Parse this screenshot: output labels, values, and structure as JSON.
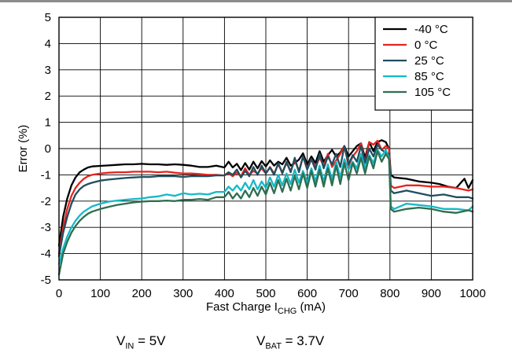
{
  "chart_data": {
    "type": "line",
    "xlabel": {
      "main": "Fast Charge I",
      "sub": "CHG",
      "suffix": " (mA)"
    },
    "ylabel": "Error (%)",
    "xlim": [
      0,
      1000
    ],
    "ylim": [
      -5,
      5
    ],
    "xticks": [
      "0",
      "100",
      "200",
      "300",
      "400",
      "500",
      "600",
      "700",
      "800",
      "900",
      "1000"
    ],
    "yticks": [
      "5",
      "4",
      "3",
      "2",
      "1",
      "0",
      "-1",
      "-2",
      "-3",
      "-4",
      "-5"
    ],
    "grid": true,
    "legend_position": "top-right",
    "series": [
      {
        "name": "-40 °C",
        "color": "#000000",
        "x": [
          0,
          10,
          20,
          30,
          40,
          50,
          60,
          70,
          80,
          100,
          120,
          140,
          160,
          180,
          200,
          220,
          240,
          260,
          280,
          300,
          320,
          340,
          360,
          380,
          400,
          410,
          420,
          430,
          440,
          450,
          460,
          470,
          480,
          490,
          500,
          510,
          520,
          530,
          540,
          550,
          560,
          570,
          580,
          590,
          600,
          610,
          620,
          630,
          640,
          650,
          660,
          670,
          680,
          690,
          700,
          710,
          720,
          730,
          740,
          750,
          760,
          770,
          780,
          790,
          798,
          802,
          810,
          840,
          870,
          900,
          920,
          940,
          960,
          980,
          990,
          1000
        ],
        "y": [
          -3.7,
          -2.6,
          -1.9,
          -1.4,
          -1.1,
          -0.9,
          -0.8,
          -0.72,
          -0.68,
          -0.66,
          -0.64,
          -0.62,
          -0.6,
          -0.6,
          -0.58,
          -0.6,
          -0.6,
          -0.62,
          -0.6,
          -0.62,
          -0.65,
          -0.7,
          -0.7,
          -0.65,
          -0.72,
          -0.5,
          -0.72,
          -0.58,
          -0.82,
          -0.55,
          -0.8,
          -0.5,
          -0.75,
          -0.48,
          -0.68,
          -0.45,
          -0.65,
          -0.5,
          -0.6,
          -0.35,
          -0.65,
          -0.55,
          -0.42,
          -0.18,
          -0.6,
          -0.3,
          -0.55,
          -0.1,
          -0.5,
          -0.25,
          -0.05,
          -0.3,
          -0.15,
          0.1,
          -0.3,
          -0.1,
          0.1,
          0.2,
          -0.35,
          0.25,
          -0.1,
          0.25,
          0.32,
          0.25,
          0.0,
          -1.0,
          -1.1,
          -1.15,
          -1.25,
          -1.3,
          -1.35,
          -1.45,
          -1.5,
          -1.15,
          -1.5,
          -1.2
        ]
      },
      {
        "name": "0 °C",
        "color": "#e8231f",
        "x": [
          0,
          10,
          20,
          30,
          40,
          50,
          60,
          70,
          80,
          100,
          120,
          140,
          160,
          180,
          200,
          220,
          240,
          260,
          280,
          300,
          320,
          340,
          360,
          380,
          400,
          410,
          420,
          430,
          440,
          450,
          460,
          470,
          480,
          490,
          500,
          510,
          520,
          530,
          540,
          550,
          560,
          570,
          580,
          590,
          600,
          610,
          620,
          630,
          640,
          650,
          660,
          670,
          680,
          690,
          700,
          710,
          720,
          730,
          740,
          750,
          760,
          770,
          780,
          790,
          798,
          802,
          810,
          840,
          870,
          900,
          930,
          960,
          990,
          1000
        ],
        "y": [
          -4.0,
          -3.0,
          -2.3,
          -1.8,
          -1.5,
          -1.3,
          -1.15,
          -1.05,
          -1.0,
          -0.95,
          -0.92,
          -0.9,
          -0.9,
          -0.88,
          -0.88,
          -0.88,
          -0.9,
          -0.88,
          -0.92,
          -0.95,
          -0.95,
          -0.97,
          -1.0,
          -1.0,
          -1.02,
          -0.95,
          -1.05,
          -0.92,
          -1.05,
          -0.75,
          -1.0,
          -0.85,
          -0.95,
          -0.75,
          -0.95,
          -0.7,
          -0.95,
          -0.6,
          -0.9,
          -0.55,
          -0.85,
          -0.45,
          -0.85,
          -0.3,
          -0.75,
          -0.4,
          -0.7,
          -0.35,
          -0.65,
          -0.2,
          -0.7,
          -0.45,
          -0.2,
          0.1,
          -0.65,
          -0.3,
          -0.1,
          0.2,
          -0.55,
          0.25,
          0.15,
          0.3,
          -0.05,
          0.1,
          0.0,
          -1.4,
          -1.5,
          -1.4,
          -1.4,
          -1.45,
          -1.45,
          -1.5,
          -1.6,
          -1.55
        ]
      },
      {
        "name": "25 °C",
        "color": "#1f4e5f",
        "x": [
          0,
          10,
          20,
          30,
          40,
          50,
          60,
          70,
          80,
          100,
          120,
          140,
          160,
          180,
          200,
          220,
          240,
          260,
          280,
          300,
          320,
          340,
          360,
          380,
          400,
          410,
          420,
          430,
          440,
          450,
          460,
          470,
          480,
          490,
          500,
          510,
          520,
          530,
          540,
          550,
          560,
          570,
          580,
          590,
          600,
          610,
          620,
          630,
          640,
          650,
          660,
          670,
          680,
          690,
          700,
          710,
          720,
          730,
          740,
          750,
          760,
          770,
          780,
          790,
          798,
          802,
          810,
          840,
          870,
          900,
          930,
          960,
          990,
          1000
        ],
        "y": [
          -4.1,
          -3.2,
          -2.6,
          -2.1,
          -1.75,
          -1.55,
          -1.42,
          -1.35,
          -1.3,
          -1.22,
          -1.18,
          -1.15,
          -1.12,
          -1.1,
          -1.08,
          -1.08,
          -1.05,
          -1.05,
          -1.05,
          -1.08,
          -1.05,
          -1.05,
          -1.05,
          -1.02,
          -1.02,
          -0.9,
          -1.0,
          -0.8,
          -1.1,
          -0.85,
          -1.05,
          -0.7,
          -1.0,
          -0.65,
          -0.95,
          -0.72,
          -1.0,
          -0.55,
          -0.95,
          -0.5,
          -0.9,
          -0.35,
          -0.9,
          -0.3,
          -0.8,
          -0.4,
          -0.8,
          -0.2,
          -0.75,
          -0.3,
          -0.6,
          -0.2,
          -0.7,
          0.1,
          -0.6,
          -0.25,
          -0.5,
          0.1,
          -0.55,
          0.0,
          -0.3,
          0.15,
          -0.05,
          -0.15,
          -0.2,
          -1.6,
          -1.7,
          -1.6,
          -1.7,
          -1.8,
          -1.75,
          -1.85,
          -1.85,
          -1.9
        ]
      },
      {
        "name": "85 °C",
        "color": "#14b9c8",
        "x": [
          0,
          10,
          20,
          30,
          40,
          50,
          60,
          70,
          80,
          100,
          120,
          140,
          160,
          180,
          200,
          220,
          240,
          260,
          280,
          300,
          320,
          340,
          360,
          380,
          400,
          410,
          420,
          430,
          440,
          450,
          460,
          470,
          480,
          490,
          500,
          510,
          520,
          530,
          540,
          550,
          560,
          570,
          580,
          590,
          600,
          610,
          620,
          630,
          640,
          650,
          660,
          670,
          680,
          690,
          700,
          710,
          720,
          730,
          740,
          750,
          760,
          770,
          780,
          790,
          798,
          802,
          810,
          840,
          870,
          900,
          930,
          960,
          990,
          1000
        ],
        "y": [
          -4.4,
          -3.8,
          -3.35,
          -3.0,
          -2.75,
          -2.55,
          -2.4,
          -2.3,
          -2.2,
          -2.1,
          -2.02,
          -1.98,
          -1.95,
          -1.92,
          -1.9,
          -1.85,
          -1.82,
          -1.75,
          -1.8,
          -1.7,
          -1.75,
          -1.72,
          -1.75,
          -1.65,
          -1.65,
          -1.45,
          -1.6,
          -1.4,
          -1.6,
          -1.3,
          -1.55,
          -1.2,
          -1.55,
          -1.25,
          -1.5,
          -1.1,
          -1.45,
          -1.0,
          -1.4,
          -0.95,
          -1.35,
          -0.8,
          -1.3,
          -0.85,
          -1.3,
          -0.75,
          -1.25,
          -0.65,
          -1.25,
          -0.6,
          -1.2,
          -0.5,
          -1.1,
          -0.4,
          -0.8,
          -0.5,
          -0.75,
          -0.2,
          -0.75,
          -0.25,
          -0.55,
          -0.05,
          -0.3,
          -0.05,
          -0.35,
          -2.2,
          -2.3,
          -2.1,
          -2.15,
          -2.2,
          -2.3,
          -2.3,
          -2.35,
          -2.2
        ]
      },
      {
        "name": "105 °C",
        "color": "#2e6e4f",
        "x": [
          0,
          10,
          20,
          30,
          40,
          50,
          60,
          70,
          80,
          100,
          120,
          140,
          160,
          180,
          200,
          220,
          240,
          260,
          280,
          300,
          320,
          340,
          360,
          380,
          400,
          410,
          420,
          430,
          440,
          450,
          460,
          470,
          480,
          490,
          500,
          510,
          520,
          530,
          540,
          550,
          560,
          570,
          580,
          590,
          600,
          610,
          620,
          630,
          640,
          650,
          660,
          670,
          680,
          690,
          700,
          710,
          720,
          730,
          740,
          750,
          760,
          770,
          780,
          790,
          798,
          802,
          810,
          840,
          870,
          900,
          930,
          960,
          990,
          1000
        ],
        "y": [
          -4.8,
          -4.0,
          -3.55,
          -3.2,
          -2.95,
          -2.75,
          -2.6,
          -2.48,
          -2.4,
          -2.3,
          -2.22,
          -2.15,
          -2.1,
          -2.05,
          -2.02,
          -2.0,
          -2.0,
          -1.98,
          -2.0,
          -1.95,
          -1.95,
          -1.92,
          -1.95,
          -1.85,
          -1.85,
          -1.65,
          -1.9,
          -1.7,
          -1.9,
          -1.6,
          -1.85,
          -1.5,
          -1.8,
          -1.45,
          -1.75,
          -1.3,
          -1.7,
          -1.2,
          -1.65,
          -1.15,
          -1.6,
          -1.05,
          -1.55,
          -0.95,
          -1.5,
          -0.85,
          -1.45,
          -0.8,
          -1.45,
          -0.75,
          -1.4,
          -0.65,
          -1.35,
          -0.55,
          -1.2,
          -0.55,
          -0.95,
          -0.35,
          -0.95,
          -0.3,
          -0.75,
          -0.1,
          -0.5,
          -0.2,
          -0.4,
          -2.3,
          -2.4,
          -2.3,
          -2.25,
          -2.3,
          -2.4,
          -2.45,
          -2.35,
          -2.4
        ]
      }
    ]
  },
  "conditions": {
    "vin": {
      "main": "V",
      "sub": "IN",
      "value": " = 5V"
    },
    "vbat": {
      "main": "V",
      "sub": "BAT",
      "value": " = 3.7V"
    }
  }
}
